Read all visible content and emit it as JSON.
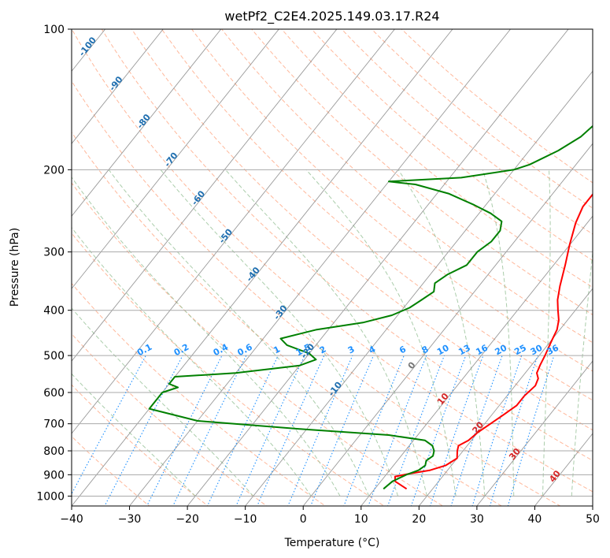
{
  "chart_data": {
    "type": "line",
    "title": "wetPf2_C2E4.2025.149.03.17.R24",
    "xlabel": "Temperature (°C)",
    "ylabel": "Pressure (hPa)",
    "xlim": [
      -40,
      50
    ],
    "ylim": [
      1050,
      100
    ],
    "y_scale": "log",
    "x_ticks": [
      -40,
      -30,
      -20,
      -10,
      0,
      10,
      20,
      30,
      40,
      50
    ],
    "y_ticks": [
      100,
      200,
      300,
      400,
      500,
      600,
      700,
      800,
      900,
      1000
    ],
    "grid": true,
    "series": [
      {
        "color": "#ff0000",
        "points": [
          [
            15.5,
            965
          ],
          [
            12.5,
            930
          ],
          [
            11.8,
            908
          ],
          [
            14,
            895
          ],
          [
            17,
            880
          ],
          [
            19,
            860
          ],
          [
            20,
            830
          ],
          [
            19,
            800
          ],
          [
            18.5,
            780
          ],
          [
            19.5,
            760
          ],
          [
            20,
            730
          ],
          [
            21,
            700
          ],
          [
            22,
            670
          ],
          [
            23,
            640
          ],
          [
            23,
            610
          ],
          [
            23.5,
            580
          ],
          [
            23,
            560
          ],
          [
            22,
            545
          ],
          [
            21.5,
            525
          ],
          [
            21,
            500
          ],
          [
            20.5,
            480
          ],
          [
            20,
            460
          ],
          [
            19.5,
            440
          ],
          [
            18.5,
            420
          ],
          [
            17,
            400
          ],
          [
            15.5,
            380
          ],
          [
            14,
            355
          ],
          [
            12,
            320
          ],
          [
            10,
            290
          ],
          [
            8,
            260
          ],
          [
            7,
            240
          ],
          [
            7,
            225
          ],
          [
            7.5,
            210
          ],
          [
            7,
            200
          ],
          [
            6,
            188
          ],
          [
            5,
            175
          ],
          [
            3.5,
            160
          ],
          [
            2,
            145
          ],
          [
            1.5,
            135
          ],
          [
            1.5,
            125
          ],
          [
            2,
            118
          ],
          [
            3,
            112
          ],
          [
            4.5,
            106
          ],
          [
            5.5,
            100
          ]
        ],
        "label_hint": "temperature profile"
      },
      {
        "color": "#008000",
        "points": [
          [
            11.5,
            965
          ],
          [
            12,
            930
          ],
          [
            13.5,
            900
          ],
          [
            15,
            880
          ],
          [
            15.5,
            860
          ],
          [
            15,
            840
          ],
          [
            15.5,
            820
          ],
          [
            15,
            800
          ],
          [
            14,
            780
          ],
          [
            12,
            760
          ],
          [
            5,
            740
          ],
          [
            -10,
            720
          ],
          [
            -30,
            690
          ],
          [
            -40,
            650
          ],
          [
            -40,
            600
          ],
          [
            -38,
            585
          ],
          [
            -40,
            575
          ],
          [
            -40,
            555
          ],
          [
            -30,
            545
          ],
          [
            -20,
            525
          ],
          [
            -18,
            510
          ],
          [
            -20,
            495
          ],
          [
            -25,
            475
          ],
          [
            -27,
            460
          ],
          [
            -22,
            440
          ],
          [
            -15,
            425
          ],
          [
            -11,
            410
          ],
          [
            -9,
            395
          ],
          [
            -8,
            380
          ],
          [
            -7,
            365
          ],
          [
            -8,
            350
          ],
          [
            -7,
            335
          ],
          [
            -5,
            320
          ],
          [
            -5,
            300
          ],
          [
            -4,
            285
          ],
          [
            -4,
            270
          ],
          [
            -5,
            258
          ],
          [
            -8,
            248
          ],
          [
            -12,
            238
          ],
          [
            -18,
            225
          ],
          [
            -25,
            215
          ],
          [
            -30,
            212
          ],
          [
            -18,
            208
          ],
          [
            -10,
            200
          ],
          [
            -8,
            195
          ],
          [
            -5,
            182
          ],
          [
            -3,
            170
          ],
          [
            -2,
            155
          ],
          [
            -1,
            140
          ],
          [
            0,
            125
          ],
          [
            0,
            115
          ],
          [
            -0.5,
            105
          ],
          [
            -1,
            100
          ]
        ],
        "label_hint": "dewpoint profile"
      }
    ],
    "dry_adiabats_C": [
      -30,
      -20,
      -10,
      0,
      10,
      20,
      30,
      40,
      50,
      60,
      70,
      80,
      90,
      100,
      110,
      120,
      130,
      140,
      150,
      160
    ],
    "moist_adiabats_C": [
      -20,
      -10,
      0,
      5,
      10,
      15,
      20,
      25,
      30,
      35,
      40,
      45
    ],
    "isohumes_gkg": [
      0.1,
      0.2,
      0.4,
      0.6,
      1,
      1.5,
      2,
      3,
      4,
      6,
      8,
      10,
      13,
      16,
      20,
      25,
      30,
      36
    ],
    "isohume_labels": [
      "0.1",
      "0.2",
      "0.4",
      "0.6",
      "1",
      "1.5",
      "2",
      "3",
      "4",
      "6",
      "8",
      "10",
      "13",
      "16",
      "20",
      "25",
      "30",
      "36"
    ],
    "isotherm_labels": [
      {
        "text": "-100",
        "value": -100,
        "p": 110
      },
      {
        "text": "-90",
        "value": -90,
        "p": 132
      },
      {
        "text": "-80",
        "value": -80,
        "p": 159
      },
      {
        "text": "-70",
        "value": -70,
        "p": 192
      },
      {
        "text": "-60",
        "value": -60,
        "p": 232
      },
      {
        "text": "-50",
        "value": -50,
        "p": 280
      },
      {
        "text": "-40",
        "value": -40,
        "p": 338
      },
      {
        "text": "-30",
        "value": -30,
        "p": 408
      },
      {
        "text": "-20",
        "value": -20,
        "p": 493
      },
      {
        "text": "-10",
        "value": -10,
        "p": 595
      }
    ],
    "temp_lcl_labels": [
      {
        "text": "0",
        "value": 0,
        "p": 530
      },
      {
        "text": "10",
        "value": 10,
        "p": 625
      },
      {
        "text": "20",
        "value": 20,
        "p": 720
      },
      {
        "text": "30",
        "value": 30,
        "p": 820
      },
      {
        "text": "40",
        "value": 40,
        "p": 915
      }
    ],
    "colors": {
      "temperature": "#ff0000",
      "dewpoint": "#008000",
      "isotherm": "#888888",
      "dry_adiabat": "#ffa07a",
      "moist_adiabat": "#8fbc8f",
      "isohume": "#1e90ff",
      "isotherm_label": "#1f6fb0",
      "warm_label": "#d62728",
      "grid": "#aaaaaa"
    }
  }
}
